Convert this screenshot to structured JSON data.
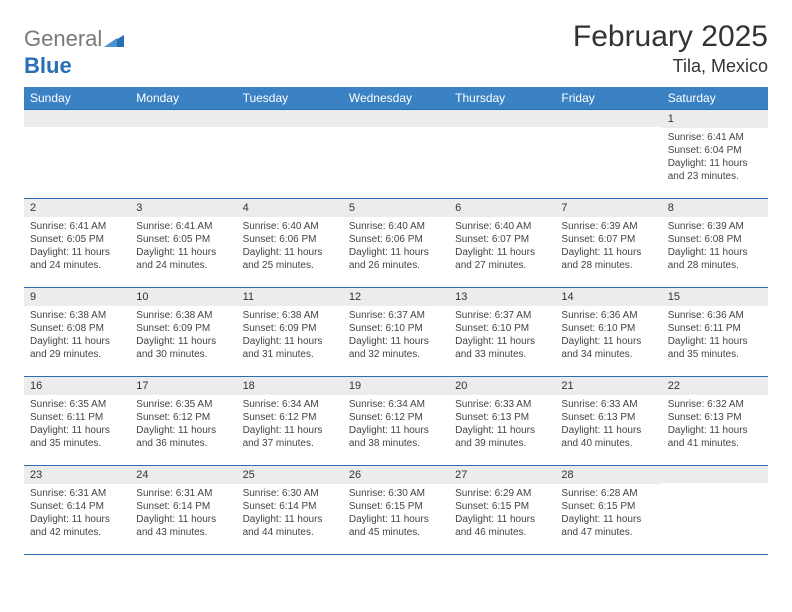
{
  "brand": {
    "text1": "General",
    "text2": "Blue",
    "icon_color": "#2a6fb5",
    "text1_color": "#7a7a7a",
    "text2_color": "#2a6fb5"
  },
  "title": "February 2025",
  "location": "Tila, Mexico",
  "header_bg": "#3b82c4",
  "header_fg": "#ffffff",
  "daynum_bg": "#ececec",
  "border_color": "#2a6fb5",
  "day_names": [
    "Sunday",
    "Monday",
    "Tuesday",
    "Wednesday",
    "Thursday",
    "Friday",
    "Saturday"
  ],
  "weeks": [
    [
      {
        "n": "",
        "lines": []
      },
      {
        "n": "",
        "lines": []
      },
      {
        "n": "",
        "lines": []
      },
      {
        "n": "",
        "lines": []
      },
      {
        "n": "",
        "lines": []
      },
      {
        "n": "",
        "lines": []
      },
      {
        "n": "1",
        "lines": [
          "Sunrise: 6:41 AM",
          "Sunset: 6:04 PM",
          "Daylight: 11 hours and 23 minutes."
        ]
      }
    ],
    [
      {
        "n": "2",
        "lines": [
          "Sunrise: 6:41 AM",
          "Sunset: 6:05 PM",
          "Daylight: 11 hours and 24 minutes."
        ]
      },
      {
        "n": "3",
        "lines": [
          "Sunrise: 6:41 AM",
          "Sunset: 6:05 PM",
          "Daylight: 11 hours and 24 minutes."
        ]
      },
      {
        "n": "4",
        "lines": [
          "Sunrise: 6:40 AM",
          "Sunset: 6:06 PM",
          "Daylight: 11 hours and 25 minutes."
        ]
      },
      {
        "n": "5",
        "lines": [
          "Sunrise: 6:40 AM",
          "Sunset: 6:06 PM",
          "Daylight: 11 hours and 26 minutes."
        ]
      },
      {
        "n": "6",
        "lines": [
          "Sunrise: 6:40 AM",
          "Sunset: 6:07 PM",
          "Daylight: 11 hours and 27 minutes."
        ]
      },
      {
        "n": "7",
        "lines": [
          "Sunrise: 6:39 AM",
          "Sunset: 6:07 PM",
          "Daylight: 11 hours and 28 minutes."
        ]
      },
      {
        "n": "8",
        "lines": [
          "Sunrise: 6:39 AM",
          "Sunset: 6:08 PM",
          "Daylight: 11 hours and 28 minutes."
        ]
      }
    ],
    [
      {
        "n": "9",
        "lines": [
          "Sunrise: 6:38 AM",
          "Sunset: 6:08 PM",
          "Daylight: 11 hours and 29 minutes."
        ]
      },
      {
        "n": "10",
        "lines": [
          "Sunrise: 6:38 AM",
          "Sunset: 6:09 PM",
          "Daylight: 11 hours and 30 minutes."
        ]
      },
      {
        "n": "11",
        "lines": [
          "Sunrise: 6:38 AM",
          "Sunset: 6:09 PM",
          "Daylight: 11 hours and 31 minutes."
        ]
      },
      {
        "n": "12",
        "lines": [
          "Sunrise: 6:37 AM",
          "Sunset: 6:10 PM",
          "Daylight: 11 hours and 32 minutes."
        ]
      },
      {
        "n": "13",
        "lines": [
          "Sunrise: 6:37 AM",
          "Sunset: 6:10 PM",
          "Daylight: 11 hours and 33 minutes."
        ]
      },
      {
        "n": "14",
        "lines": [
          "Sunrise: 6:36 AM",
          "Sunset: 6:10 PM",
          "Daylight: 11 hours and 34 minutes."
        ]
      },
      {
        "n": "15",
        "lines": [
          "Sunrise: 6:36 AM",
          "Sunset: 6:11 PM",
          "Daylight: 11 hours and 35 minutes."
        ]
      }
    ],
    [
      {
        "n": "16",
        "lines": [
          "Sunrise: 6:35 AM",
          "Sunset: 6:11 PM",
          "Daylight: 11 hours and 35 minutes."
        ]
      },
      {
        "n": "17",
        "lines": [
          "Sunrise: 6:35 AM",
          "Sunset: 6:12 PM",
          "Daylight: 11 hours and 36 minutes."
        ]
      },
      {
        "n": "18",
        "lines": [
          "Sunrise: 6:34 AM",
          "Sunset: 6:12 PM",
          "Daylight: 11 hours and 37 minutes."
        ]
      },
      {
        "n": "19",
        "lines": [
          "Sunrise: 6:34 AM",
          "Sunset: 6:12 PM",
          "Daylight: 11 hours and 38 minutes."
        ]
      },
      {
        "n": "20",
        "lines": [
          "Sunrise: 6:33 AM",
          "Sunset: 6:13 PM",
          "Daylight: 11 hours and 39 minutes."
        ]
      },
      {
        "n": "21",
        "lines": [
          "Sunrise: 6:33 AM",
          "Sunset: 6:13 PM",
          "Daylight: 11 hours and 40 minutes."
        ]
      },
      {
        "n": "22",
        "lines": [
          "Sunrise: 6:32 AM",
          "Sunset: 6:13 PM",
          "Daylight: 11 hours and 41 minutes."
        ]
      }
    ],
    [
      {
        "n": "23",
        "lines": [
          "Sunrise: 6:31 AM",
          "Sunset: 6:14 PM",
          "Daylight: 11 hours and 42 minutes."
        ]
      },
      {
        "n": "24",
        "lines": [
          "Sunrise: 6:31 AM",
          "Sunset: 6:14 PM",
          "Daylight: 11 hours and 43 minutes."
        ]
      },
      {
        "n": "25",
        "lines": [
          "Sunrise: 6:30 AM",
          "Sunset: 6:14 PM",
          "Daylight: 11 hours and 44 minutes."
        ]
      },
      {
        "n": "26",
        "lines": [
          "Sunrise: 6:30 AM",
          "Sunset: 6:15 PM",
          "Daylight: 11 hours and 45 minutes."
        ]
      },
      {
        "n": "27",
        "lines": [
          "Sunrise: 6:29 AM",
          "Sunset: 6:15 PM",
          "Daylight: 11 hours and 46 minutes."
        ]
      },
      {
        "n": "28",
        "lines": [
          "Sunrise: 6:28 AM",
          "Sunset: 6:15 PM",
          "Daylight: 11 hours and 47 minutes."
        ]
      },
      {
        "n": "",
        "lines": []
      }
    ]
  ]
}
